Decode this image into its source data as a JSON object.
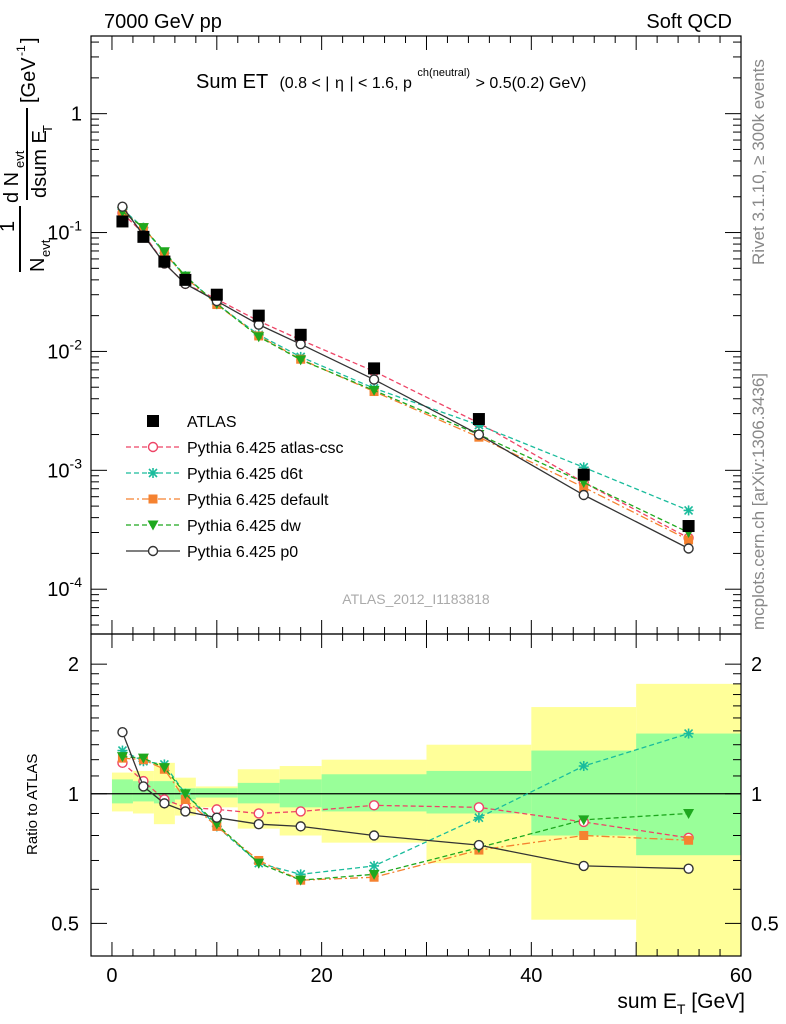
{
  "header": {
    "left": "7000 GeV pp",
    "right": "Soft QCD"
  },
  "plot_title": {
    "main": "Sum ET",
    "cond_a": "(0.8 < |",
    "eta": "η",
    "cond_b": "| < 1.6, p",
    "superscript": "ch(neutral)",
    "cond_c": " > 0.5(0.2) GeV)"
  },
  "side_labels": {
    "rivet": "Rivet 3.1.10, ≥ 300k events",
    "mcplots": "mcplots.cern.ch [arXiv:1306.3436]"
  },
  "watermark": "ATLAS_2012_I1183818",
  "axes": {
    "y_main": {
      "label": "1/N_evt dN_evt/dsum E_T [GeV^-1]",
      "ticks": [
        "1",
        "10^-1",
        "10^-2",
        "10^-3",
        "10^-4"
      ],
      "scale": "log",
      "range": [
        4.2e-05,
        4.5
      ]
    },
    "y_ratio": {
      "label": "Ratio to ATLAS",
      "ticks": [
        "0.5",
        "1",
        "2"
      ],
      "scale": "log",
      "range": [
        0.42,
        2.35
      ]
    },
    "x": {
      "label": "sum E_T [GeV]",
      "ticks": [
        "0",
        "20",
        "40",
        "60"
      ],
      "range": [
        -2,
        60
      ]
    }
  },
  "chart_data": {
    "type": "scatter",
    "x": [
      1,
      3,
      5,
      7,
      10,
      14,
      18,
      25,
      35,
      45,
      55
    ],
    "bins": [
      [
        0,
        2
      ],
      [
        2,
        4
      ],
      [
        4,
        6
      ],
      [
        6,
        8
      ],
      [
        8,
        12
      ],
      [
        12,
        16
      ],
      [
        16,
        20
      ],
      [
        20,
        30
      ],
      [
        30,
        40
      ],
      [
        40,
        50
      ],
      [
        50,
        60
      ]
    ],
    "series": [
      {
        "name": "ATLAS",
        "style": "data",
        "color": "#000000",
        "values": [
          0.124,
          0.092,
          0.057,
          0.04,
          0.03,
          0.02,
          0.0138,
          0.0072,
          0.0027,
          0.00092,
          0.00034
        ]
      },
      {
        "name": "Pythia 6.425 atlas-csc",
        "style": "circle-open-dashed",
        "color": "#ee4466",
        "values": [
          0.146,
          0.098,
          0.055,
          0.037,
          0.0275,
          0.018,
          0.0125,
          0.0068,
          0.0025,
          0.00079,
          0.00027
        ]
      },
      {
        "name": "Pythia 6.425 d6t",
        "style": "star-dashed",
        "color": "#1abc9c",
        "values": [
          0.157,
          0.11,
          0.067,
          0.043,
          0.025,
          0.0138,
          0.009,
          0.0049,
          0.0024,
          0.00106,
          0.00046
        ]
      },
      {
        "name": "Pythia 6.425 default",
        "style": "square-dashdot",
        "color": "#f58230",
        "values": [
          0.15,
          0.11,
          0.068,
          0.042,
          0.0248,
          0.0135,
          0.0086,
          0.0046,
          0.0019,
          0.00072,
          0.00026
        ]
      },
      {
        "name": "Pythia 6.425 dw",
        "style": "triangle-dashed",
        "color": "#1ea81e",
        "values": [
          0.15,
          0.11,
          0.069,
          0.043,
          0.0252,
          0.0133,
          0.0085,
          0.0047,
          0.002,
          0.00079,
          0.0003
        ]
      },
      {
        "name": "Pythia 6.425 p0",
        "style": "circle-open-solid",
        "color": "#333333",
        "values": [
          0.165,
          0.095,
          0.055,
          0.037,
          0.0265,
          0.0168,
          0.0115,
          0.0058,
          0.002,
          0.00062,
          0.00022
        ]
      }
    ],
    "ratio": {
      "series": [
        {
          "name": "Pythia 6.425 atlas-csc",
          "values": [
            1.18,
            1.07,
            0.97,
            0.93,
            0.92,
            0.9,
            0.91,
            0.94,
            0.93,
            0.86,
            0.79
          ]
        },
        {
          "name": "Pythia 6.425 d6t",
          "values": [
            1.26,
            1.19,
            1.17,
            1.0,
            0.84,
            0.69,
            0.65,
            0.68,
            0.88,
            1.16,
            1.38
          ]
        },
        {
          "name": "Pythia 6.425 default",
          "values": [
            1.21,
            1.2,
            1.14,
            0.97,
            0.84,
            0.7,
            0.63,
            0.64,
            0.74,
            0.8,
            0.78
          ]
        },
        {
          "name": "Pythia 6.425 dw",
          "values": [
            1.22,
            1.21,
            1.15,
            1.0,
            0.85,
            0.69,
            0.63,
            0.65,
            0.75,
            0.87,
            0.9
          ]
        },
        {
          "name": "Pythia 6.425 p0",
          "values": [
            1.39,
            1.04,
            0.95,
            0.91,
            0.88,
            0.85,
            0.84,
            0.8,
            0.76,
            0.68,
            0.67
          ]
        }
      ],
      "band_inner": [
        [
          0.95,
          1.08
        ],
        [
          0.96,
          1.07
        ],
        [
          0.95,
          1.07
        ],
        [
          0.97,
          1.03
        ],
        [
          0.98,
          1.03
        ],
        [
          0.95,
          1.06
        ],
        [
          0.93,
          1.08
        ],
        [
          0.91,
          1.11
        ],
        [
          0.9,
          1.13
        ],
        [
          0.8,
          1.26
        ],
        [
          0.72,
          1.38
        ]
      ],
      "band_outer": [
        [
          0.91,
          1.12
        ],
        [
          0.9,
          1.13
        ],
        [
          0.85,
          1.18
        ],
        [
          0.89,
          1.09
        ],
        [
          0.93,
          1.04
        ],
        [
          0.83,
          1.14
        ],
        [
          0.8,
          1.16
        ],
        [
          0.77,
          1.2
        ],
        [
          0.69,
          1.3
        ],
        [
          0.51,
          1.59
        ],
        [
          0.3,
          1.8
        ]
      ]
    }
  }
}
